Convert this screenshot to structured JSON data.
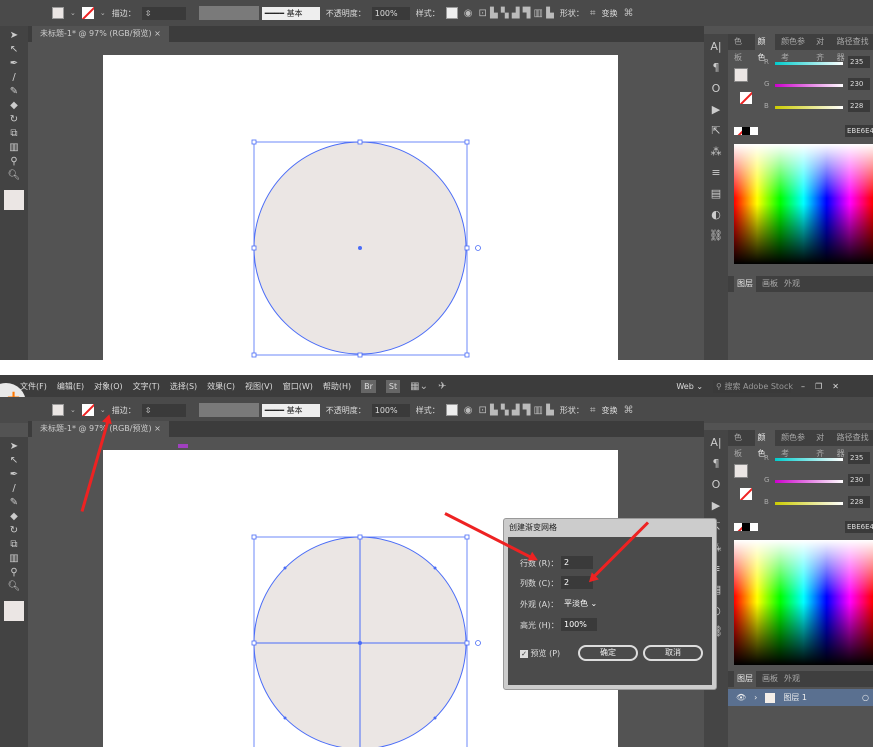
{
  "menu": [
    "文件(F)",
    "编辑(E)",
    "对象(O)",
    "文字(T)",
    "选择(S)",
    "效果(C)",
    "视图(V)",
    "窗口(W)",
    "帮助(H)"
  ],
  "menu_right": {
    "workspace": "Web",
    "search_placeholder": "搜索 Adobe Stock",
    "br": "Br",
    "st": "St"
  },
  "toolbar": {
    "stroke_label": "描边：",
    "stroke_style": "基本",
    "opacity_label": "不透明度：",
    "opacity": "100%",
    "style_label": "样式：",
    "shape_label": "形状：",
    "transform_label": "变换"
  },
  "document_tab": "未标题-1* @ 97% (RGB/预览)",
  "color_panel": {
    "tabs": [
      "色板",
      "颜色",
      "颜色参考",
      "对齐",
      "路径查找器"
    ],
    "active_tab": "颜色",
    "r_label": "R",
    "g_label": "G",
    "b_label": "B",
    "r": "235",
    "g": "230",
    "b": "228",
    "hex": "EBE6E4",
    "fill_color": "#ebe6e4"
  },
  "layers_panel": {
    "tabs": [
      "图层",
      "画板",
      "外观"
    ],
    "layer_name": "图层 1"
  },
  "dialog": {
    "title": "创建渐变网格",
    "rows_label": "行数 (R)：",
    "rows": "2",
    "cols_label": "列数 (C)：",
    "cols": "2",
    "appearance_label": "外观 (A)：",
    "appearance": "平淡色",
    "highlight_label": "高光 (H)：",
    "highlight": "100%",
    "preview_label": "预览 (P)",
    "preview_checked": true,
    "ok": "确定",
    "cancel": "取消"
  }
}
